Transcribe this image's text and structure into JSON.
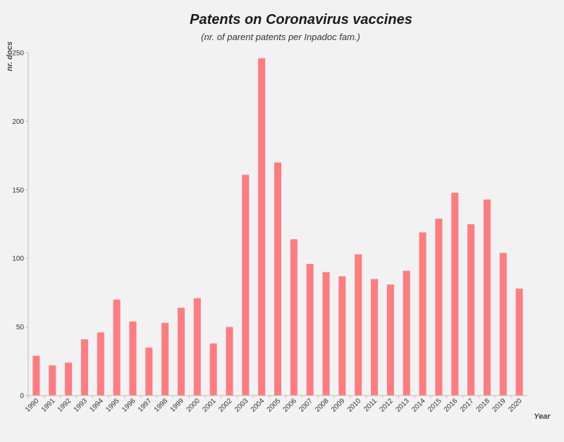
{
  "chart_data": {
    "type": "bar",
    "title": "Patents on Coronavirus vaccines",
    "subtitle": "(nr. of parent patents per Inpadoc fam.)",
    "xlabel": "Year",
    "ylabel": "nr. docs",
    "ylim": [
      0,
      250
    ],
    "yticks": [
      0,
      50,
      100,
      150,
      200,
      250
    ],
    "grid": false,
    "bar_color": "#ff7c80",
    "categories": [
      "1990",
      "1991",
      "1992",
      "1993",
      "1994",
      "1995",
      "1996",
      "1997",
      "1998",
      "1999",
      "2000",
      "2001",
      "2002",
      "2003",
      "2004",
      "2005",
      "2006",
      "2007",
      "2008",
      "2009",
      "2010",
      "2011",
      "2012",
      "2013",
      "2014",
      "2015",
      "2016",
      "2017",
      "2018",
      "2019",
      "2020"
    ],
    "values": [
      29,
      22,
      24,
      41,
      46,
      70,
      54,
      35,
      53,
      64,
      71,
      38,
      50,
      161,
      246,
      170,
      114,
      96,
      90,
      87,
      103,
      85,
      81,
      91,
      119,
      129,
      148,
      125,
      143,
      104,
      78
    ]
  }
}
